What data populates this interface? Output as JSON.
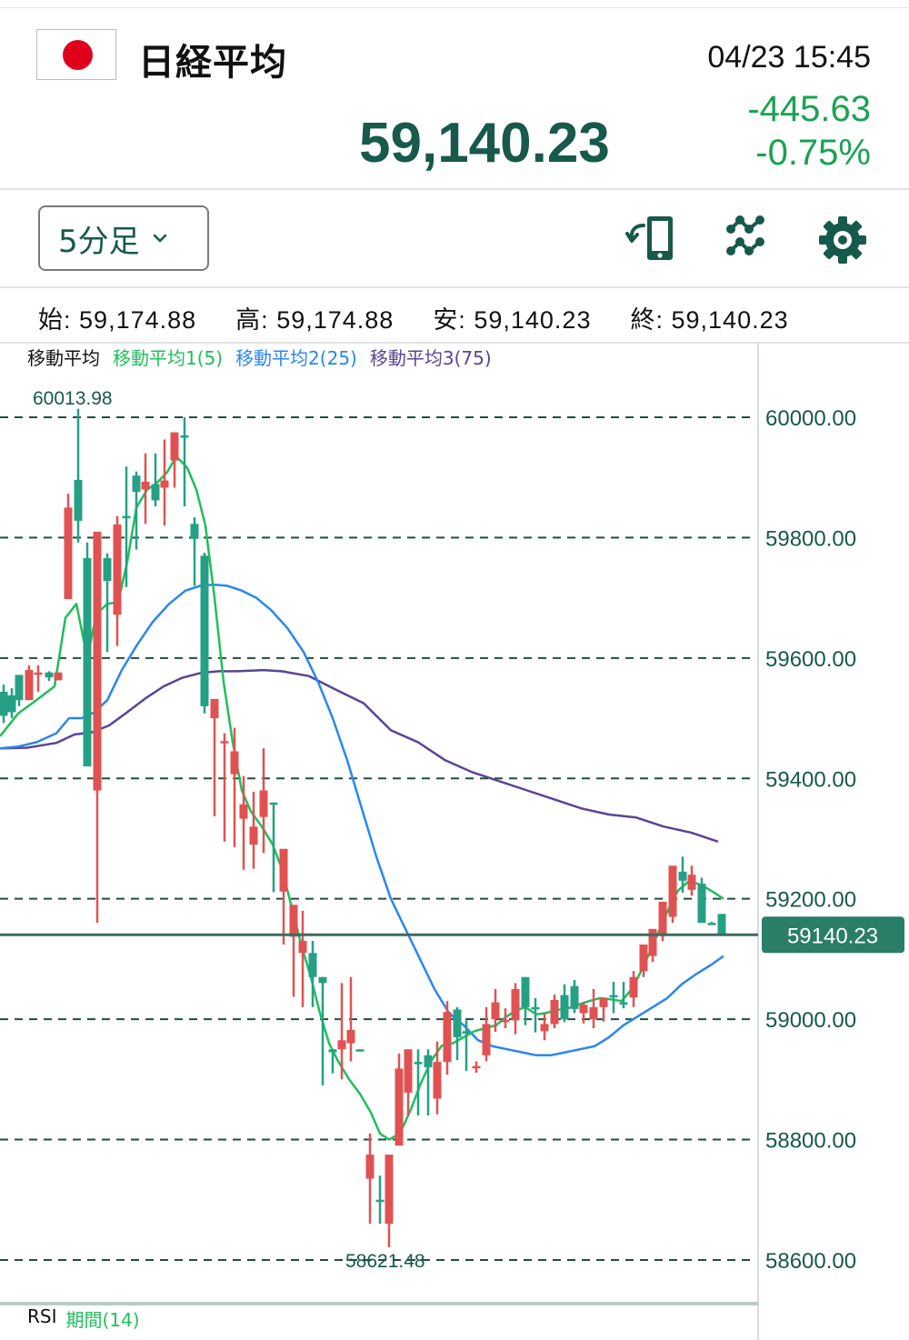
{
  "header": {
    "flag": "japan-flag",
    "title": "日経平均",
    "datetime": "04/23 15:45",
    "price": "59,140.23",
    "change": "-445.63",
    "change_pct": "-0.75%"
  },
  "toolbar": {
    "timeframe": "5分足",
    "icons": [
      "rotate-device-icon",
      "indicator-icon",
      "gear-icon"
    ]
  },
  "ohlc": {
    "open_label": "始:",
    "open": "59,174.88",
    "high_label": "高:",
    "high": "59,174.88",
    "low_label": "安:",
    "low": "59,140.23",
    "close_label": "終:",
    "close": "59,140.23"
  },
  "legend": {
    "title": "移動平均",
    "ma1": "移動平均1(5)",
    "ma2": "移動平均2(25)",
    "ma3": "移動平均3(75)"
  },
  "rsi": {
    "label": "RSI",
    "period": "期間(14)"
  },
  "colors": {
    "brand": "#17594a",
    "up": "#e05252",
    "down": "#26a085",
    "ma1": "#1fbf5a",
    "ma2": "#2a86f0",
    "ma3": "#5b4396",
    "grid": "#1f4d40",
    "change": "#1aa251"
  },
  "chart_data": {
    "type": "candlestick",
    "title": "日経平均 5分足",
    "ylabel": "",
    "xlabel": "",
    "ylim": [
      58560,
      60120
    ],
    "yticks": [
      "60000.00",
      "59800.00",
      "59600.00",
      "59400.00",
      "59200.00",
      "59000.00",
      "58800.00",
      "58600.00"
    ],
    "current_price_label": "59140.23",
    "current_price": 59140.23,
    "high_annotation": "60013.98",
    "high": 60013.98,
    "low_annotation": "58621.48",
    "low": 58621.48,
    "candles": [
      [
        4,
        59544,
        59556,
        59492,
        59504
      ],
      [
        13,
        59538,
        59550,
        59500,
        59510
      ],
      [
        21,
        59572,
        59570,
        59520,
        59530
      ],
      [
        32,
        59530,
        59588,
        59540,
        59580
      ],
      [
        42,
        59574,
        59588,
        59544,
        59576
      ],
      [
        54,
        59576,
        59578,
        59562,
        59568
      ],
      [
        64,
        59563,
        59576,
        59572,
        59576
      ],
      [
        75,
        59698,
        59873,
        59710,
        59850
      ],
      [
        86,
        59896,
        60014,
        59792,
        59828
      ],
      [
        96,
        59766,
        59792,
        59420,
        59420
      ],
      [
        107,
        59380,
        59692,
        59160,
        59810
      ],
      [
        118,
        59766,
        59774,
        59610,
        59728
      ],
      [
        129,
        59672,
        59836,
        59620,
        59822
      ],
      [
        139,
        59836,
        59918,
        59718,
        59836
      ],
      [
        150,
        59903,
        59910,
        59780,
        59876
      ],
      [
        160,
        59880,
        59940,
        59823,
        59893
      ],
      [
        171,
        59889,
        59940,
        59852,
        59862
      ],
      [
        181,
        59883,
        59963,
        59820,
        59895
      ],
      [
        192,
        59928,
        59975,
        59883,
        59975
      ],
      [
        203,
        59970,
        60000,
        59852,
        59966
      ],
      [
        214,
        59823,
        59834,
        59720,
        59798
      ],
      [
        225,
        59770,
        59775,
        59508,
        59520
      ],
      [
        236,
        59500,
        59508,
        59337,
        59532
      ],
      [
        247,
        59460,
        59475,
        59295,
        59462
      ],
      [
        258,
        59407,
        59484,
        59286,
        59445
      ],
      [
        268,
        59333,
        59404,
        59248,
        59357
      ],
      [
        279,
        59290,
        59378,
        59250,
        59320
      ],
      [
        290,
        59336,
        59450,
        59276,
        59380
      ],
      [
        301,
        59360,
        59360,
        59211,
        59360
      ],
      [
        312,
        59212,
        59247,
        59124,
        59283
      ],
      [
        323,
        59137,
        59176,
        59037,
        59190
      ],
      [
        333,
        59110,
        59180,
        59020,
        59130
      ],
      [
        344,
        59110,
        59130,
        59020,
        59070
      ],
      [
        355,
        59070,
        59070,
        58890,
        59060
      ],
      [
        366,
        58950,
        58950,
        58910,
        58945
      ],
      [
        376,
        58950,
        59060,
        58900,
        58965
      ],
      [
        386,
        58960,
        59070,
        58930,
        58982
      ],
      [
        396,
        58950,
        58950,
        58950,
        58950
      ],
      [
        407,
        58735,
        58810,
        58660,
        58775
      ],
      [
        418,
        58700,
        58740,
        58660,
        58700
      ],
      [
        428,
        58660,
        58768,
        58621,
        58775
      ],
      [
        439,
        58790,
        58943,
        58790,
        58918
      ],
      [
        449,
        58878,
        58935,
        58840,
        58950
      ],
      [
        460,
        58929,
        58950,
        58840,
        58929
      ],
      [
        471,
        58940,
        58950,
        58840,
        58920
      ],
      [
        481,
        58868,
        58963,
        58842,
        58929
      ],
      [
        492,
        58929,
        59030,
        58908,
        59012
      ],
      [
        503,
        59016,
        59020,
        58932,
        58970
      ],
      [
        513,
        58980,
        58998,
        58914,
        58980
      ],
      [
        524,
        58920,
        58930,
        58911,
        58922
      ],
      [
        535,
        58940,
        59020,
        58930,
        58992
      ],
      [
        545,
        59000,
        59050,
        58979,
        59028
      ],
      [
        556,
        58995,
        59018,
        58985,
        58999
      ],
      [
        567,
        58998,
        59060,
        58975,
        59050
      ],
      [
        578,
        59070,
        59070,
        58990,
        59020
      ],
      [
        589,
        59020,
        59035,
        58978,
        59020
      ],
      [
        599,
        58980,
        59010,
        58965,
        58992
      ],
      [
        610,
        58992,
        59041,
        58985,
        59032
      ],
      [
        621,
        59040,
        59058,
        58995,
        59000
      ],
      [
        632,
        59055,
        59065,
        59010,
        59017
      ],
      [
        642,
        59010,
        59029,
        58993,
        59024
      ],
      [
        653,
        59000,
        59050,
        58985,
        59020
      ],
      [
        664,
        59020,
        59030,
        58996,
        59035
      ],
      [
        675,
        59040,
        59062,
        59010,
        59040
      ],
      [
        686,
        59028,
        59062,
        59018,
        59025
      ],
      [
        697,
        59036,
        59080,
        59020,
        59070
      ],
      [
        708,
        59080,
        59100,
        59070,
        59124
      ],
      [
        718,
        59105,
        59130,
        59095,
        59150
      ],
      [
        729,
        59140,
        59175,
        59130,
        59195
      ],
      [
        740,
        59170,
        59250,
        59160,
        59255
      ],
      [
        751,
        59245,
        59270,
        59210,
        59230
      ],
      [
        761,
        59215,
        59255,
        59205,
        59240
      ],
      [
        772,
        59225,
        59235,
        59162,
        59160
      ],
      [
        783,
        59160,
        59162,
        59160,
        59158
      ],
      [
        794,
        59174.88,
        59174.88,
        59140.23,
        59140.23
      ]
    ],
    "series": [
      {
        "name": "移動平均1(5)",
        "color": "#1fbf5a",
        "points": [
          [
            0,
            59470
          ],
          [
            20,
            59508
          ],
          [
            40,
            59530
          ],
          [
            60,
            59553
          ],
          [
            72,
            59667
          ],
          [
            84,
            59690
          ],
          [
            96,
            59600
          ],
          [
            106,
            59673
          ],
          [
            118,
            59690
          ],
          [
            130,
            59693
          ],
          [
            140,
            59760
          ],
          [
            150,
            59850
          ],
          [
            162,
            59880
          ],
          [
            172,
            59890
          ],
          [
            184,
            59909
          ],
          [
            194,
            59935
          ],
          [
            206,
            59916
          ],
          [
            216,
            59880
          ],
          [
            226,
            59820
          ],
          [
            236,
            59700
          ],
          [
            246,
            59560
          ],
          [
            256,
            59460
          ],
          [
            266,
            59380
          ],
          [
            276,
            59345
          ],
          [
            288,
            59320
          ],
          [
            300,
            59290
          ],
          [
            310,
            59250
          ],
          [
            322,
            59180
          ],
          [
            332,
            59120
          ],
          [
            342,
            59070
          ],
          [
            352,
            59010
          ],
          [
            362,
            58960
          ],
          [
            372,
            58930
          ],
          [
            384,
            58900
          ],
          [
            396,
            58876
          ],
          [
            408,
            58845
          ],
          [
            418,
            58810
          ],
          [
            428,
            58800
          ],
          [
            440,
            58810
          ],
          [
            452,
            58850
          ],
          [
            462,
            58890
          ],
          [
            474,
            58930
          ],
          [
            486,
            58956
          ],
          [
            498,
            58960
          ],
          [
            510,
            58970
          ],
          [
            522,
            58980
          ],
          [
            534,
            58985
          ],
          [
            546,
            58990
          ],
          [
            556,
            59003
          ],
          [
            568,
            59015
          ],
          [
            578,
            59020
          ],
          [
            590,
            59008
          ],
          [
            600,
            59010
          ],
          [
            612,
            59015
          ],
          [
            624,
            59018
          ],
          [
            636,
            59024
          ],
          [
            648,
            59030
          ],
          [
            660,
            59035
          ],
          [
            672,
            59033
          ],
          [
            684,
            59030
          ],
          [
            696,
            59052
          ],
          [
            706,
            59082
          ],
          [
            716,
            59115
          ],
          [
            726,
            59150
          ],
          [
            736,
            59185
          ],
          [
            746,
            59214
          ],
          [
            756,
            59227
          ],
          [
            766,
            59226
          ],
          [
            776,
            59219
          ],
          [
            786,
            59210
          ],
          [
            796,
            59200
          ]
        ]
      },
      {
        "name": "移動平均2(25)",
        "color": "#2a86f0",
        "points": [
          [
            0,
            59450
          ],
          [
            20,
            59453
          ],
          [
            40,
            59460
          ],
          [
            62,
            59475
          ],
          [
            76,
            59500
          ],
          [
            90,
            59500
          ],
          [
            104,
            59510
          ],
          [
            118,
            59530
          ],
          [
            134,
            59580
          ],
          [
            150,
            59620
          ],
          [
            168,
            59660
          ],
          [
            186,
            59690
          ],
          [
            204,
            59712
          ],
          [
            220,
            59720
          ],
          [
            236,
            59722
          ],
          [
            250,
            59720
          ],
          [
            266,
            59712
          ],
          [
            282,
            59700
          ],
          [
            298,
            59680
          ],
          [
            316,
            59650
          ],
          [
            334,
            59610
          ],
          [
            350,
            59560
          ],
          [
            366,
            59500
          ],
          [
            382,
            59430
          ],
          [
            398,
            59350
          ],
          [
            414,
            59270
          ],
          [
            430,
            59200
          ],
          [
            446,
            59150
          ],
          [
            462,
            59100
          ],
          [
            478,
            59050
          ],
          [
            494,
            59010
          ],
          [
            510,
            58990
          ],
          [
            526,
            58965
          ],
          [
            542,
            58955
          ],
          [
            558,
            58950
          ],
          [
            574,
            58945
          ],
          [
            590,
            58940
          ],
          [
            606,
            58940
          ],
          [
            622,
            58945
          ],
          [
            638,
            58950
          ],
          [
            654,
            58955
          ],
          [
            670,
            58970
          ],
          [
            686,
            58990
          ],
          [
            702,
            59005
          ],
          [
            718,
            59020
          ],
          [
            734,
            59035
          ],
          [
            750,
            59058
          ],
          [
            766,
            59075
          ],
          [
            782,
            59090
          ],
          [
            796,
            59105
          ]
        ]
      },
      {
        "name": "移動平均3(75)",
        "color": "#5b4396",
        "points": [
          [
            0,
            59450
          ],
          [
            30,
            59451
          ],
          [
            62,
            59459
          ],
          [
            82,
            59473
          ],
          [
            100,
            59476
          ],
          [
            120,
            59488
          ],
          [
            140,
            59510
          ],
          [
            160,
            59533
          ],
          [
            180,
            59553
          ],
          [
            200,
            59567
          ],
          [
            220,
            59575
          ],
          [
            240,
            59578
          ],
          [
            260,
            59578
          ],
          [
            290,
            59580
          ],
          [
            310,
            59578
          ],
          [
            340,
            59570
          ],
          [
            370,
            59547
          ],
          [
            400,
            59525
          ],
          [
            430,
            59480
          ],
          [
            460,
            59460
          ],
          [
            490,
            59430
          ],
          [
            520,
            59410
          ],
          [
            550,
            59395
          ],
          [
            580,
            59380
          ],
          [
            610,
            59365
          ],
          [
            640,
            59350
          ],
          [
            670,
            59340
          ],
          [
            700,
            59335
          ],
          [
            730,
            59320
          ],
          [
            760,
            59310
          ],
          [
            790,
            59295
          ]
        ]
      }
    ]
  }
}
